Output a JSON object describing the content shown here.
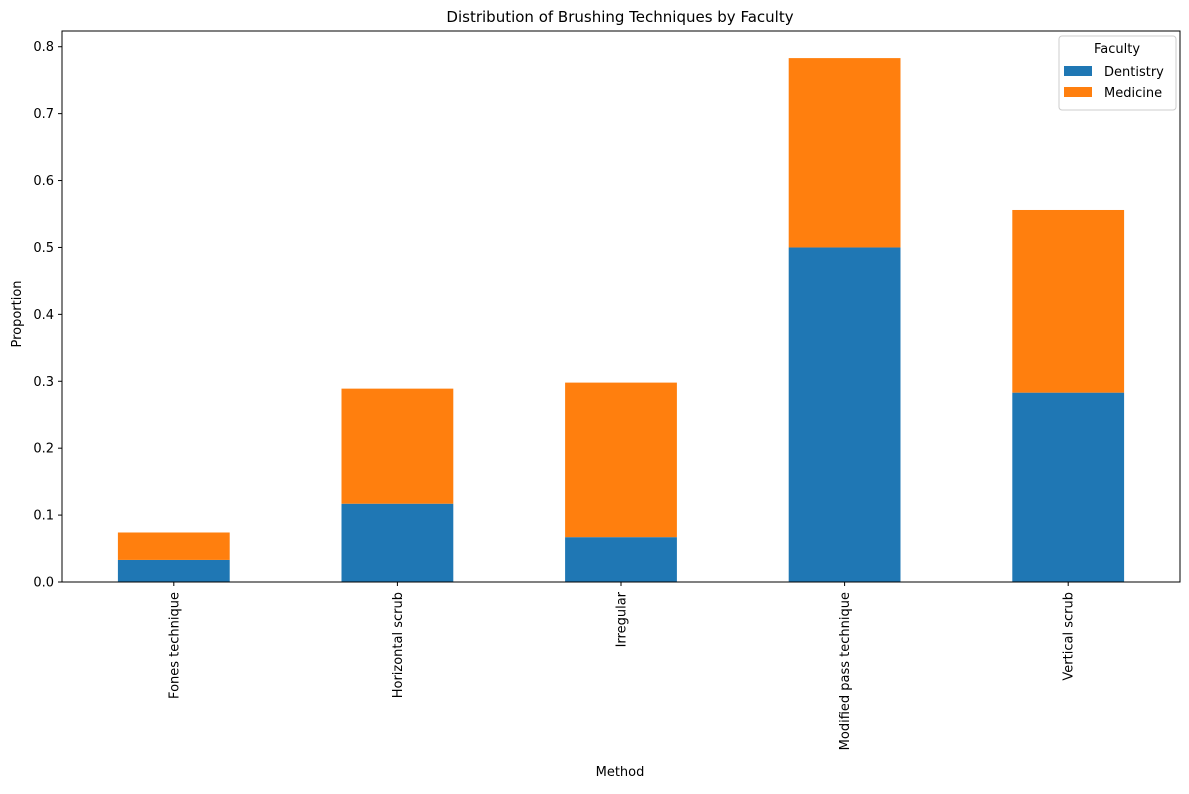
{
  "chart_data": {
    "type": "bar",
    "stacked": true,
    "title": "Distribution of Brushing Techniques by Faculty",
    "xlabel": "Method",
    "ylabel": "Proportion",
    "ylim": [
      0,
      0.8
    ],
    "yticks": [
      "0.0",
      "0.1",
      "0.2",
      "0.3",
      "0.4",
      "0.5",
      "0.6",
      "0.7",
      "0.8"
    ],
    "categories": [
      "Fones technique",
      "Horizontal scrub",
      "Irregular",
      "Modified pass technique",
      "Vertical scrub"
    ],
    "series": [
      {
        "name": "Dentistry",
        "color": "#1f77b4",
        "values": [
          0.033,
          0.117,
          0.067,
          0.5,
          0.283
        ]
      },
      {
        "name": "Medicine",
        "color": "#ff7f0e",
        "values": [
          0.041,
          0.172,
          0.231,
          0.283,
          0.273
        ]
      }
    ],
    "legend": {
      "title": "Faculty",
      "placement": "top-right"
    },
    "grid": false
  }
}
